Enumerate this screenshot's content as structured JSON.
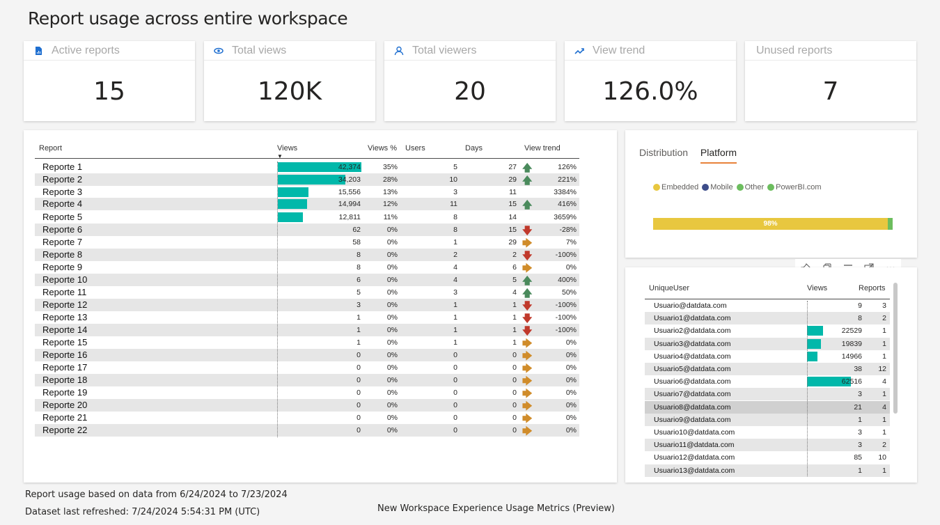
{
  "page": {
    "title": "Report usage across entire workspace"
  },
  "kpis": [
    {
      "label": "Active reports",
      "value": "15",
      "icon": "report-icon"
    },
    {
      "label": "Total views",
      "value": "120K",
      "icon": "eye-icon"
    },
    {
      "label": "Total viewers",
      "value": "20",
      "icon": "user-icon"
    },
    {
      "label": "View trend",
      "value": "126.0%",
      "icon": "trend-icon"
    },
    {
      "label": "Unused reports",
      "value": "7",
      "icon": ""
    }
  ],
  "report_table": {
    "headers": {
      "report": "Report",
      "views": "Views",
      "views_pct": "Views %",
      "users": "Users",
      "days": "Days",
      "view_trend": "View trend"
    },
    "max_views": 42374,
    "rows": [
      {
        "name": "Reporte 1",
        "views": "42,374",
        "views_num": 42374,
        "views_pct": "35%",
        "users": "5",
        "days": "27",
        "trend": "126%",
        "direction": "up"
      },
      {
        "name": "Reporte 2",
        "views": "34,203",
        "views_num": 34203,
        "views_pct": "28%",
        "users": "10",
        "days": "29",
        "trend": "221%",
        "direction": "up"
      },
      {
        "name": "Reporte 3",
        "views": "15,556",
        "views_num": 15556,
        "views_pct": "13%",
        "users": "3",
        "days": "11",
        "trend": "3384%",
        "direction": ""
      },
      {
        "name": "Reporte 4",
        "views": "14,994",
        "views_num": 14994,
        "views_pct": "12%",
        "users": "11",
        "days": "15",
        "trend": "416%",
        "direction": "up"
      },
      {
        "name": "Reporte 5",
        "views": "12,811",
        "views_num": 12811,
        "views_pct": "11%",
        "users": "8",
        "days": "14",
        "trend": "3659%",
        "direction": ""
      },
      {
        "name": "Reporte 6",
        "views": "62",
        "views_num": 62,
        "views_pct": "0%",
        "users": "8",
        "days": "15",
        "trend": "-28%",
        "direction": "down"
      },
      {
        "name": "Reporte 7",
        "views": "58",
        "views_num": 58,
        "views_pct": "0%",
        "users": "1",
        "days": "29",
        "trend": "7%",
        "direction": "flat"
      },
      {
        "name": "Reporte 8",
        "views": "8",
        "views_num": 8,
        "views_pct": "0%",
        "users": "2",
        "days": "2",
        "trend": "-100%",
        "direction": "down"
      },
      {
        "name": "Reporte 9",
        "views": "8",
        "views_num": 8,
        "views_pct": "0%",
        "users": "4",
        "days": "6",
        "trend": "0%",
        "direction": "flat"
      },
      {
        "name": "Reporte 10",
        "views": "6",
        "views_num": 6,
        "views_pct": "0%",
        "users": "4",
        "days": "5",
        "trend": "400%",
        "direction": "up"
      },
      {
        "name": "Reporte 11",
        "views": "5",
        "views_num": 5,
        "views_pct": "0%",
        "users": "3",
        "days": "4",
        "trend": "50%",
        "direction": "up"
      },
      {
        "name": "Reporte 12",
        "views": "3",
        "views_num": 3,
        "views_pct": "0%",
        "users": "1",
        "days": "1",
        "trend": "-100%",
        "direction": "down"
      },
      {
        "name": "Reporte 13",
        "views": "1",
        "views_num": 1,
        "views_pct": "0%",
        "users": "1",
        "days": "1",
        "trend": "-100%",
        "direction": "down"
      },
      {
        "name": "Reporte 14",
        "views": "1",
        "views_num": 1,
        "views_pct": "0%",
        "users": "1",
        "days": "1",
        "trend": "-100%",
        "direction": "down"
      },
      {
        "name": "Reporte 15",
        "views": "1",
        "views_num": 1,
        "views_pct": "0%",
        "users": "1",
        "days": "1",
        "trend": "0%",
        "direction": "flat"
      },
      {
        "name": "Reporte 16",
        "views": "0",
        "views_num": 0,
        "views_pct": "0%",
        "users": "0",
        "days": "0",
        "trend": "0%",
        "direction": "flat"
      },
      {
        "name": "Reporte 17",
        "views": "0",
        "views_num": 0,
        "views_pct": "0%",
        "users": "0",
        "days": "0",
        "trend": "0%",
        "direction": "flat"
      },
      {
        "name": "Reporte 18",
        "views": "0",
        "views_num": 0,
        "views_pct": "0%",
        "users": "0",
        "days": "0",
        "trend": "0%",
        "direction": "flat"
      },
      {
        "name": "Reporte 19",
        "views": "0",
        "views_num": 0,
        "views_pct": "0%",
        "users": "0",
        "days": "0",
        "trend": "0%",
        "direction": "flat"
      },
      {
        "name": "Reporte 20",
        "views": "0",
        "views_num": 0,
        "views_pct": "0%",
        "users": "0",
        "days": "0",
        "trend": "0%",
        "direction": "flat"
      },
      {
        "name": "Reporte 21",
        "views": "0",
        "views_num": 0,
        "views_pct": "0%",
        "users": "0",
        "days": "0",
        "trend": "0%",
        "direction": "flat"
      },
      {
        "name": "Reporte 22",
        "views": "0",
        "views_num": 0,
        "views_pct": "0%",
        "users": "0",
        "days": "0",
        "trend": "0%",
        "direction": "flat"
      }
    ]
  },
  "distribution": {
    "tabs": [
      "Distribution",
      "Platform"
    ],
    "active_tab": "Platform",
    "legend": [
      {
        "label": "Embedded",
        "color": "#e8c73f"
      },
      {
        "label": "Mobile",
        "color": "#3d4d8a"
      },
      {
        "label": "Other",
        "color": "#6cbd5e"
      },
      {
        "label": "PowerBI.com",
        "color": "#6cbd5e"
      }
    ],
    "embedded_label": "98%",
    "embedded_pct": 98
  },
  "users_table": {
    "headers": {
      "user": "UniqueUser",
      "views": "Views",
      "reports": "Reports"
    },
    "max_views": 62516,
    "rows": [
      {
        "user": "Usuario@datdata.com",
        "views": "9",
        "views_num": 9,
        "reports": "3"
      },
      {
        "user": "Usuario1@datdata.com",
        "views": "8",
        "views_num": 8,
        "reports": "2"
      },
      {
        "user": "Usuario2@datdata.com",
        "views": "22529",
        "views_num": 22529,
        "reports": "1"
      },
      {
        "user": "Usuario3@datdata.com",
        "views": "19839",
        "views_num": 19839,
        "reports": "1"
      },
      {
        "user": "Usuario4@datdata.com",
        "views": "14966",
        "views_num": 14966,
        "reports": "1"
      },
      {
        "user": "Usuario5@datdata.com",
        "views": "38",
        "views_num": 38,
        "reports": "12"
      },
      {
        "user": "Usuario6@datdata.com",
        "views": "62516",
        "views_num": 62516,
        "reports": "4"
      },
      {
        "user": "Usuario7@datdata.com",
        "views": "3",
        "views_num": 3,
        "reports": "1"
      },
      {
        "user": "Usuario8@datdata.com",
        "views": "21",
        "views_num": 21,
        "reports": "4"
      },
      {
        "user": "Usuario9@datdata.com",
        "views": "1",
        "views_num": 1,
        "reports": "1"
      },
      {
        "user": "Usuario10@datdata.com",
        "views": "3",
        "views_num": 3,
        "reports": "1"
      },
      {
        "user": "Usuario11@datdata.com",
        "views": "3",
        "views_num": 3,
        "reports": "2"
      },
      {
        "user": "Usuario12@datdata.com",
        "views": "85",
        "views_num": 85,
        "reports": "10"
      },
      {
        "user": "Usuario13@datdata.com",
        "views": "1",
        "views_num": 1,
        "reports": "1"
      }
    ]
  },
  "toolbar": {
    "icons": [
      "pin-icon",
      "copy-icon",
      "filter-icon",
      "focus-mode-icon",
      "more-options-icon"
    ]
  },
  "footer": {
    "data_range": "Report usage based on data from 6/24/2024 to 7/23/2024",
    "refreshed": "Dataset last refreshed: 7/24/2024 5:54:31 PM (UTC)",
    "product": "New Workspace Experience Usage Metrics (Preview)"
  },
  "colors": {
    "bar": "#01b8aa",
    "up": "#4a8a5c",
    "down": "#c0392b",
    "flat": "#d08c2a",
    "accent_tab": "#e8823a"
  }
}
